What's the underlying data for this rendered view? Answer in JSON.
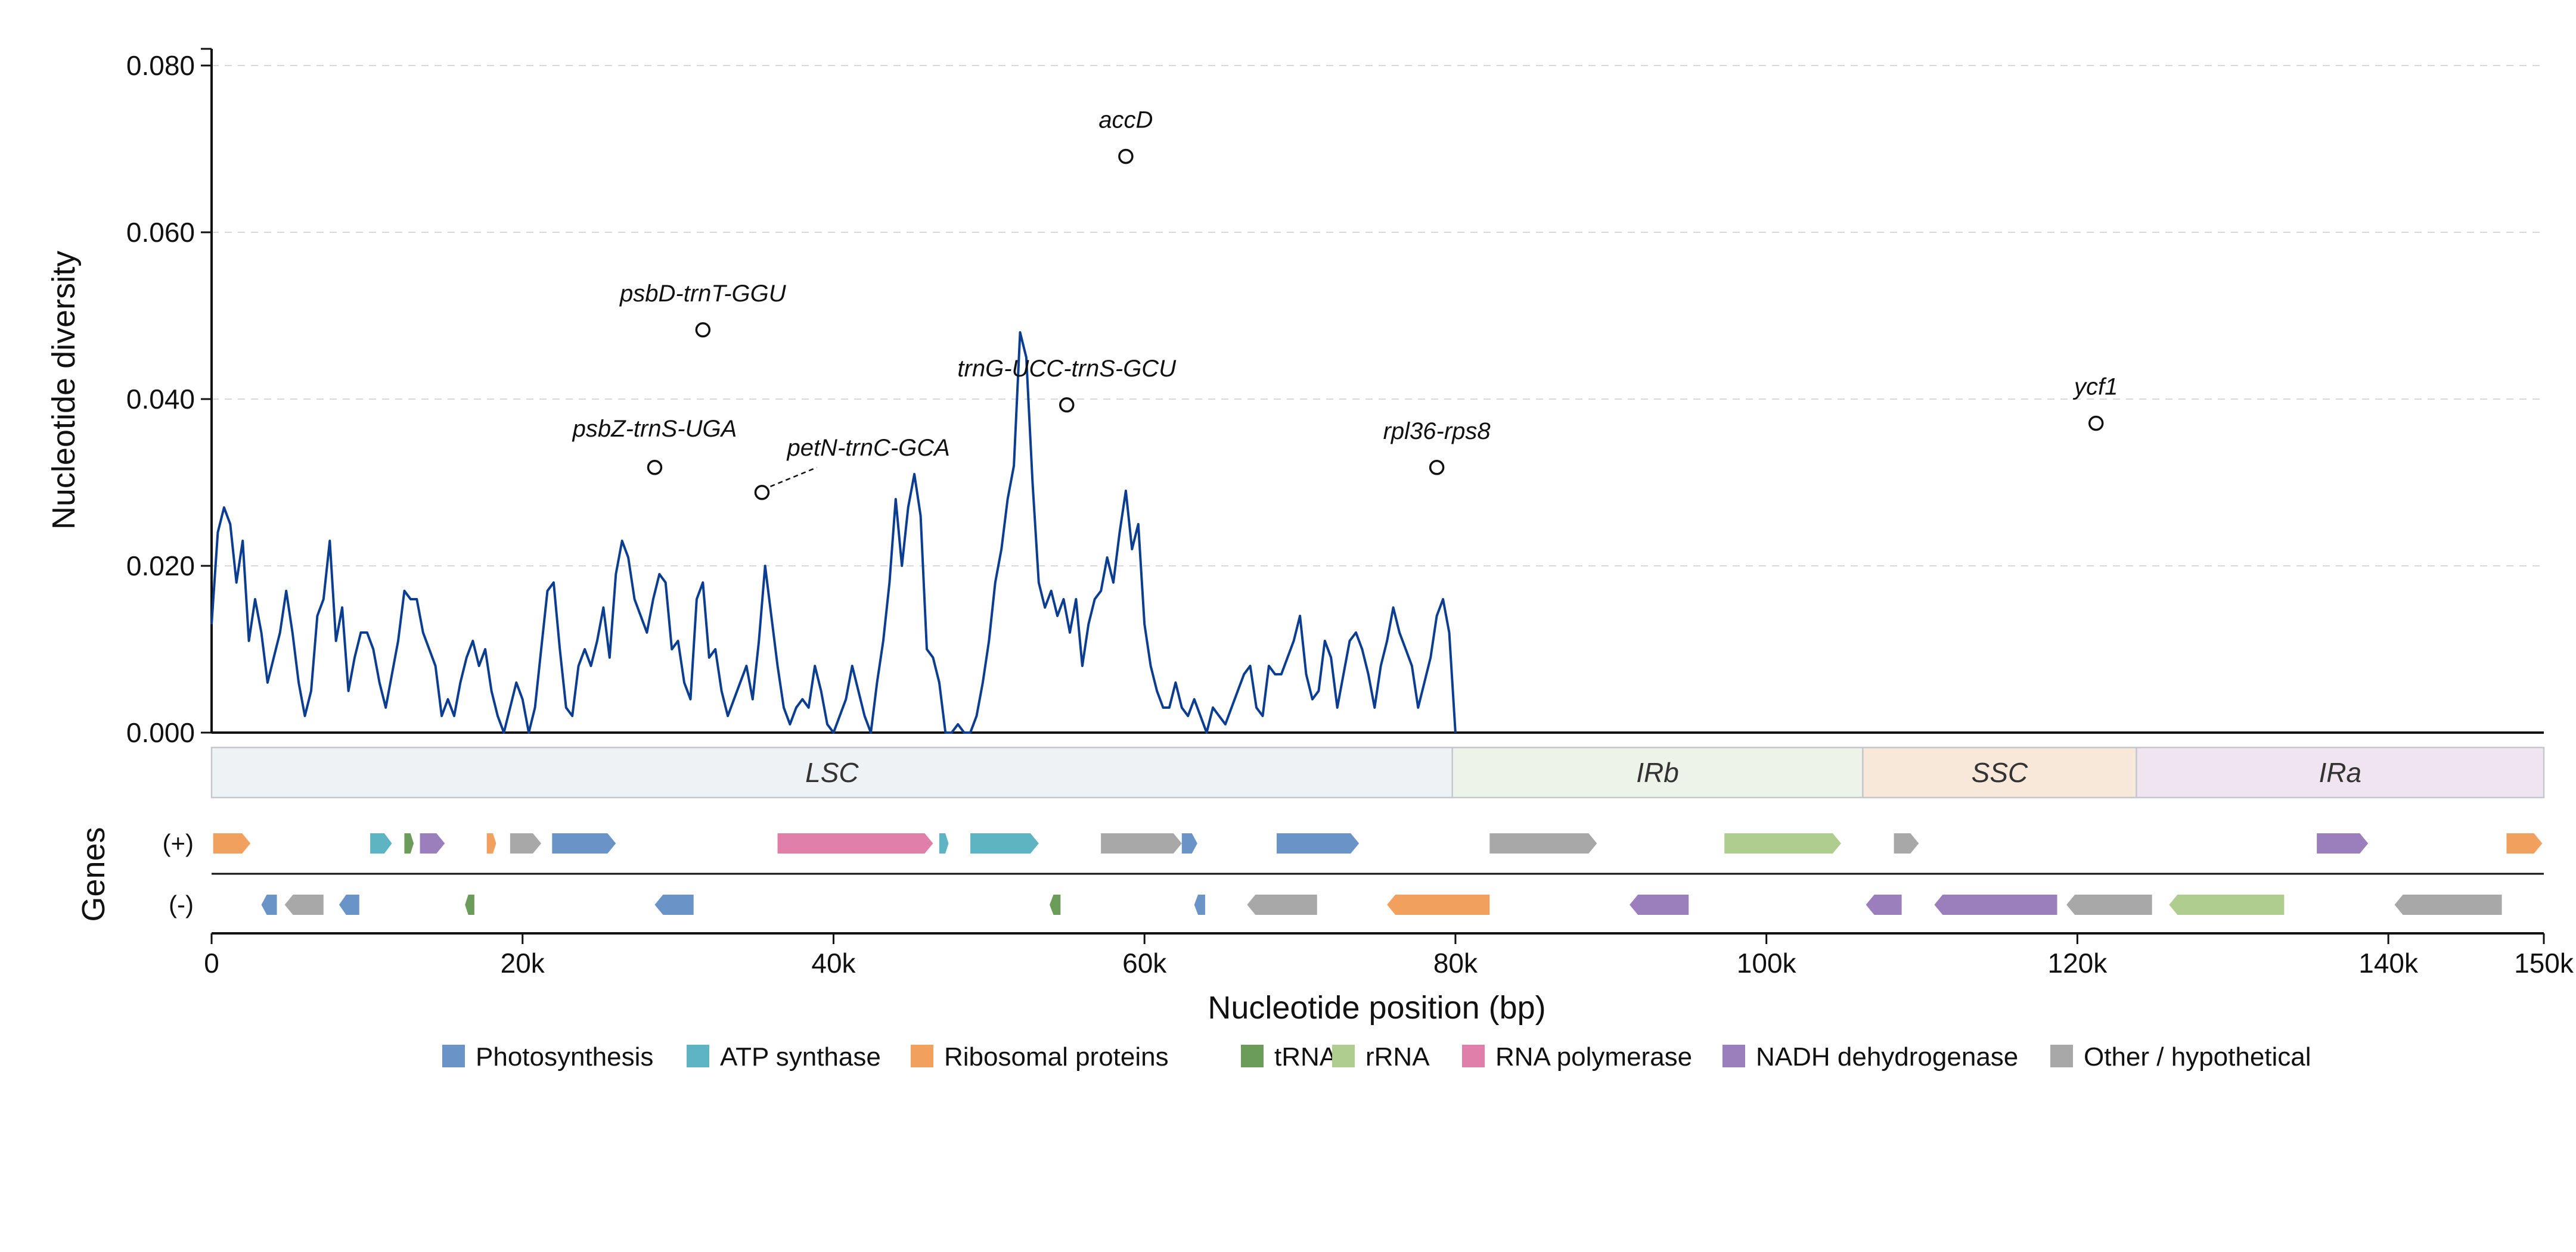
{
  "chart_data": {
    "type": "line",
    "title": "",
    "xlabel": "Nucleotide position (bp)",
    "ylabel": "Nucleotide diversity",
    "genes_label": "Genes",
    "xlim": [
      0,
      150000
    ],
    "ylim": [
      0,
      0.082
    ],
    "x_ticks": [
      {
        "value": 0,
        "label": "0"
      },
      {
        "value": 20000,
        "label": "20k"
      },
      {
        "value": 40000,
        "label": "40k"
      },
      {
        "value": 60000,
        "label": "60k"
      },
      {
        "value": 80000,
        "label": "80k"
      },
      {
        "value": 100000,
        "label": "100k"
      },
      {
        "value": 120000,
        "label": "120k"
      },
      {
        "value": 140000,
        "label": "140k"
      },
      {
        "value": 150000,
        "label": "150k"
      }
    ],
    "y_ticks": [
      {
        "value": 0,
        "label": "0.000"
      },
      {
        "value": 0.02,
        "label": "0.020"
      },
      {
        "value": 0.04,
        "label": "0.040"
      },
      {
        "value": 0.06,
        "label": "0.060"
      },
      {
        "value": 0.08,
        "label": "0.080"
      }
    ],
    "grid": "horizontal dashed",
    "line_color": "#0b3d91",
    "series": [
      {
        "points": [
          [
            0,
            0.013
          ],
          [
            400,
            0.024
          ],
          [
            800,
            0.027
          ],
          [
            1200,
            0.025
          ],
          [
            1600,
            0.018
          ],
          [
            2000,
            0.023
          ],
          [
            2400,
            0.011
          ],
          [
            2800,
            0.016
          ],
          [
            3200,
            0.012
          ],
          [
            3600,
            0.006
          ],
          [
            4000,
            0.009
          ],
          [
            4400,
            0.012
          ],
          [
            4800,
            0.017
          ],
          [
            5200,
            0.012
          ],
          [
            5600,
            0.006
          ],
          [
            6000,
            0.002
          ],
          [
            6400,
            0.005
          ],
          [
            6800,
            0.014
          ],
          [
            7200,
            0.016
          ],
          [
            7600,
            0.023
          ],
          [
            8000,
            0.011
          ],
          [
            8400,
            0.015
          ],
          [
            8800,
            0.005
          ],
          [
            9200,
            0.009
          ],
          [
            9600,
            0.012
          ],
          [
            10000,
            0.012
          ],
          [
            10400,
            0.01
          ],
          [
            10800,
            0.006
          ],
          [
            11200,
            0.003
          ],
          [
            11600,
            0.007
          ],
          [
            12000,
            0.011
          ],
          [
            12400,
            0.017
          ],
          [
            12800,
            0.016
          ],
          [
            13200,
            0.016
          ],
          [
            13600,
            0.012
          ],
          [
            14000,
            0.01
          ],
          [
            14400,
            0.008
          ],
          [
            14800,
            0.002
          ],
          [
            15200,
            0.004
          ],
          [
            15600,
            0.002
          ],
          [
            16000,
            0.006
          ],
          [
            16400,
            0.009
          ],
          [
            16800,
            0.011
          ],
          [
            17200,
            0.008
          ],
          [
            17600,
            0.01
          ],
          [
            18000,
            0.005
          ],
          [
            18400,
            0.002
          ],
          [
            18800,
            0.0
          ],
          [
            19200,
            0.003
          ],
          [
            19600,
            0.006
          ],
          [
            20000,
            0.004
          ],
          [
            20400,
            0.0
          ],
          [
            20800,
            0.003
          ],
          [
            21200,
            0.01
          ],
          [
            21600,
            0.017
          ],
          [
            22000,
            0.018
          ],
          [
            22400,
            0.01
          ],
          [
            22800,
            0.003
          ],
          [
            23200,
            0.002
          ],
          [
            23600,
            0.008
          ],
          [
            24000,
            0.01
          ],
          [
            24400,
            0.008
          ],
          [
            24800,
            0.011
          ],
          [
            25200,
            0.015
          ],
          [
            25600,
            0.009
          ],
          [
            26000,
            0.019
          ],
          [
            26400,
            0.023
          ],
          [
            26800,
            0.021
          ],
          [
            27200,
            0.016
          ],
          [
            27600,
            0.014
          ],
          [
            28000,
            0.012
          ],
          [
            28400,
            0.016
          ],
          [
            28800,
            0.019
          ],
          [
            29200,
            0.018
          ],
          [
            29600,
            0.01
          ],
          [
            30000,
            0.011
          ],
          [
            30400,
            0.006
          ],
          [
            30800,
            0.004
          ],
          [
            31200,
            0.016
          ],
          [
            31600,
            0.018
          ],
          [
            32000,
            0.009
          ],
          [
            32400,
            0.01
          ],
          [
            32800,
            0.005
          ],
          [
            33200,
            0.002
          ],
          [
            33600,
            0.004
          ],
          [
            34000,
            0.006
          ],
          [
            34400,
            0.008
          ],
          [
            34800,
            0.004
          ],
          [
            35200,
            0.011
          ],
          [
            35600,
            0.02
          ],
          [
            36000,
            0.014
          ],
          [
            36400,
            0.008
          ],
          [
            36800,
            0.003
          ],
          [
            37200,
            0.001
          ],
          [
            37600,
            0.003
          ],
          [
            38000,
            0.004
          ],
          [
            38400,
            0.003
          ],
          [
            38800,
            0.008
          ],
          [
            39200,
            0.005
          ],
          [
            39600,
            0.001
          ],
          [
            40000,
            0.0
          ],
          [
            40400,
            0.002
          ],
          [
            40800,
            0.004
          ],
          [
            41200,
            0.008
          ],
          [
            41600,
            0.005
          ],
          [
            42000,
            0.002
          ],
          [
            42400,
            0.0
          ],
          [
            42800,
            0.006
          ],
          [
            43200,
            0.011
          ],
          [
            43600,
            0.018
          ],
          [
            44000,
            0.028
          ],
          [
            44400,
            0.02
          ],
          [
            44800,
            0.027
          ],
          [
            45200,
            0.031
          ],
          [
            45600,
            0.026
          ],
          [
            46000,
            0.01
          ],
          [
            46400,
            0.009
          ],
          [
            46800,
            0.006
          ],
          [
            47200,
            0.0
          ],
          [
            47600,
            0.0
          ],
          [
            48000,
            0.001
          ],
          [
            48400,
            0.0
          ],
          [
            48800,
            0.0
          ],
          [
            49200,
            0.002
          ],
          [
            49600,
            0.006
          ],
          [
            50000,
            0.011
          ],
          [
            50400,
            0.018
          ],
          [
            50800,
            0.022
          ],
          [
            51200,
            0.028
          ],
          [
            51600,
            0.032
          ],
          [
            52000,
            0.048
          ],
          [
            52400,
            0.045
          ],
          [
            52800,
            0.03
          ],
          [
            53200,
            0.018
          ],
          [
            53600,
            0.015
          ],
          [
            54000,
            0.017
          ],
          [
            54400,
            0.014
          ],
          [
            54800,
            0.016
          ],
          [
            55200,
            0.012
          ],
          [
            55600,
            0.016
          ],
          [
            56000,
            0.008
          ],
          [
            56400,
            0.013
          ],
          [
            56800,
            0.016
          ],
          [
            57200,
            0.017
          ],
          [
            57600,
            0.021
          ],
          [
            58000,
            0.018
          ],
          [
            58400,
            0.024
          ],
          [
            58800,
            0.029
          ],
          [
            59200,
            0.022
          ],
          [
            59600,
            0.025
          ],
          [
            60000,
            0.013
          ],
          [
            60400,
            0.008
          ],
          [
            60800,
            0.005
          ],
          [
            61200,
            0.003
          ],
          [
            61600,
            0.003
          ],
          [
            62000,
            0.006
          ],
          [
            62400,
            0.003
          ],
          [
            62800,
            0.002
          ],
          [
            63200,
            0.004
          ],
          [
            63600,
            0.002
          ],
          [
            64000,
            0.0
          ],
          [
            64400,
            0.003
          ],
          [
            64800,
            0.002
          ],
          [
            65200,
            0.001
          ],
          [
            65600,
            0.003
          ],
          [
            66000,
            0.005
          ],
          [
            66400,
            0.007
          ],
          [
            66800,
            0.008
          ],
          [
            67200,
            0.003
          ],
          [
            67600,
            0.002
          ],
          [
            68000,
            0.008
          ],
          [
            68400,
            0.007
          ],
          [
            68800,
            0.007
          ],
          [
            69200,
            0.009
          ],
          [
            69600,
            0.011
          ],
          [
            70000,
            0.014
          ],
          [
            70400,
            0.007
          ],
          [
            70800,
            0.004
          ],
          [
            71200,
            0.005
          ],
          [
            71600,
            0.011
          ],
          [
            72000,
            0.009
          ],
          [
            72400,
            0.003
          ],
          [
            72800,
            0.007
          ],
          [
            73200,
            0.011
          ],
          [
            73600,
            0.012
          ],
          [
            74000,
            0.01
          ],
          [
            74400,
            0.007
          ],
          [
            74800,
            0.003
          ],
          [
            75200,
            0.008
          ],
          [
            75600,
            0.011
          ],
          [
            76000,
            0.015
          ],
          [
            76400,
            0.012
          ],
          [
            76800,
            0.01
          ],
          [
            77200,
            0.008
          ],
          [
            77600,
            0.003
          ],
          [
            78000,
            0.006
          ],
          [
            78400,
            0.009
          ],
          [
            78800,
            0.014
          ],
          [
            79200,
            0.016
          ],
          [
            79600,
            0.012
          ],
          [
            80000,
            0.0
          ]
        ]
      }
    ],
    "peaks": [
      {
        "label": "psbZ-trnS-UGA",
        "x": 28500,
        "y": 0.0318
      },
      {
        "label": "psbD-trnT-GGU",
        "x": 31600,
        "y": 0.0483
      },
      {
        "label": "petN-trnC-GCA",
        "x": 35400,
        "y": 0.0288
      },
      {
        "label": "trnG-UCC-trnS-GCU",
        "x": 55000,
        "y": 0.0393
      },
      {
        "label": "accD",
        "x": 58800,
        "y": 0.0691
      },
      {
        "label": "rpl36-rps8",
        "x": 78800,
        "y": 0.0318
      },
      {
        "label": "ycf1",
        "x": 121200,
        "y": 0.0371
      }
    ],
    "regions": [
      {
        "label": "LSC",
        "start": 0,
        "end": 79800,
        "color": "#eef2f5"
      },
      {
        "label": "IRb",
        "start": 79800,
        "end": 106200,
        "color": "#eef3ea"
      },
      {
        "label": "SSC",
        "start": 106200,
        "end": 123800,
        "color": "#f8e8d9"
      },
      {
        "label": "IRa",
        "start": 123800,
        "end": 150000,
        "color": "#f0e4f0"
      }
    ],
    "gene_tracks": [
      {
        "strand": "(+)"
      },
      {
        "strand": "(-)"
      }
    ],
    "genes_plus": [
      {
        "start": 100,
        "end": 2500,
        "cat": "ribo"
      },
      {
        "start": 10200,
        "end": 11600,
        "cat": "atp"
      },
      {
        "start": 12400,
        "end": 13000,
        "cat": "trna"
      },
      {
        "start": 13400,
        "end": 15000,
        "cat": "nadh"
      },
      {
        "start": 17700,
        "end": 18300,
        "cat": "ribo"
      },
      {
        "start": 19200,
        "end": 21200,
        "cat": "other"
      },
      {
        "start": 21900,
        "end": 26000,
        "cat": "photo"
      },
      {
        "start": 36400,
        "end": 46400,
        "cat": "rnap"
      },
      {
        "start": 46800,
        "end": 47400,
        "cat": "atp"
      },
      {
        "start": 48800,
        "end": 53200,
        "cat": "atp"
      },
      {
        "start": 57200,
        "end": 62400,
        "cat": "other"
      },
      {
        "start": 62400,
        "end": 63400,
        "cat": "photo"
      },
      {
        "start": 68500,
        "end": 73800,
        "cat": "photo"
      },
      {
        "start": 82200,
        "end": 89100,
        "cat": "other"
      },
      {
        "start": 97300,
        "end": 104800,
        "cat": "rrna"
      },
      {
        "start": 108200,
        "end": 109800,
        "cat": "other"
      },
      {
        "start": 135400,
        "end": 138700,
        "cat": "nadh"
      },
      {
        "start": 147600,
        "end": 149900,
        "cat": "ribo"
      }
    ],
    "genes_minus": [
      {
        "start": 3200,
        "end": 4200,
        "cat": "photo"
      },
      {
        "start": 4700,
        "end": 7200,
        "cat": "other"
      },
      {
        "start": 8200,
        "end": 9500,
        "cat": "photo"
      },
      {
        "start": 16300,
        "end": 16900,
        "cat": "trna"
      },
      {
        "start": 28500,
        "end": 31000,
        "cat": "photo"
      },
      {
        "start": 53900,
        "end": 54600,
        "cat": "trna"
      },
      {
        "start": 63200,
        "end": 63900,
        "cat": "photo"
      },
      {
        "start": 66600,
        "end": 71100,
        "cat": "other"
      },
      {
        "start": 75600,
        "end": 82200,
        "cat": "ribo"
      },
      {
        "start": 91200,
        "end": 95000,
        "cat": "nadh"
      },
      {
        "start": 106400,
        "end": 108700,
        "cat": "nadh"
      },
      {
        "start": 110800,
        "end": 118700,
        "cat": "nadh"
      },
      {
        "start": 119300,
        "end": 124800,
        "cat": "other"
      },
      {
        "start": 125900,
        "end": 133300,
        "cat": "rrna"
      },
      {
        "start": 140400,
        "end": 147300,
        "cat": "other"
      }
    ],
    "categories": [
      {
        "key": "photo",
        "label": "Photosynthesis",
        "color": "#6a93c7"
      },
      {
        "key": "atp",
        "label": "ATP synthase",
        "color": "#5fb4c4"
      },
      {
        "key": "ribo",
        "label": "Ribosomal proteins",
        "color": "#f2a05e"
      },
      {
        "key": "trna",
        "label": "tRNA",
        "color": "#6b9c5a"
      },
      {
        "key": "rrna",
        "label": "rRNA",
        "color": "#aecd8f"
      },
      {
        "key": "rnap",
        "label": "RNA polymerase",
        "color": "#e07fa9"
      },
      {
        "key": "nadh",
        "label": "NADH dehydrogenase",
        "color": "#9b7fbc"
      },
      {
        "key": "other",
        "label": "Other / hypothetical",
        "color": "#a8a8a8"
      }
    ]
  }
}
